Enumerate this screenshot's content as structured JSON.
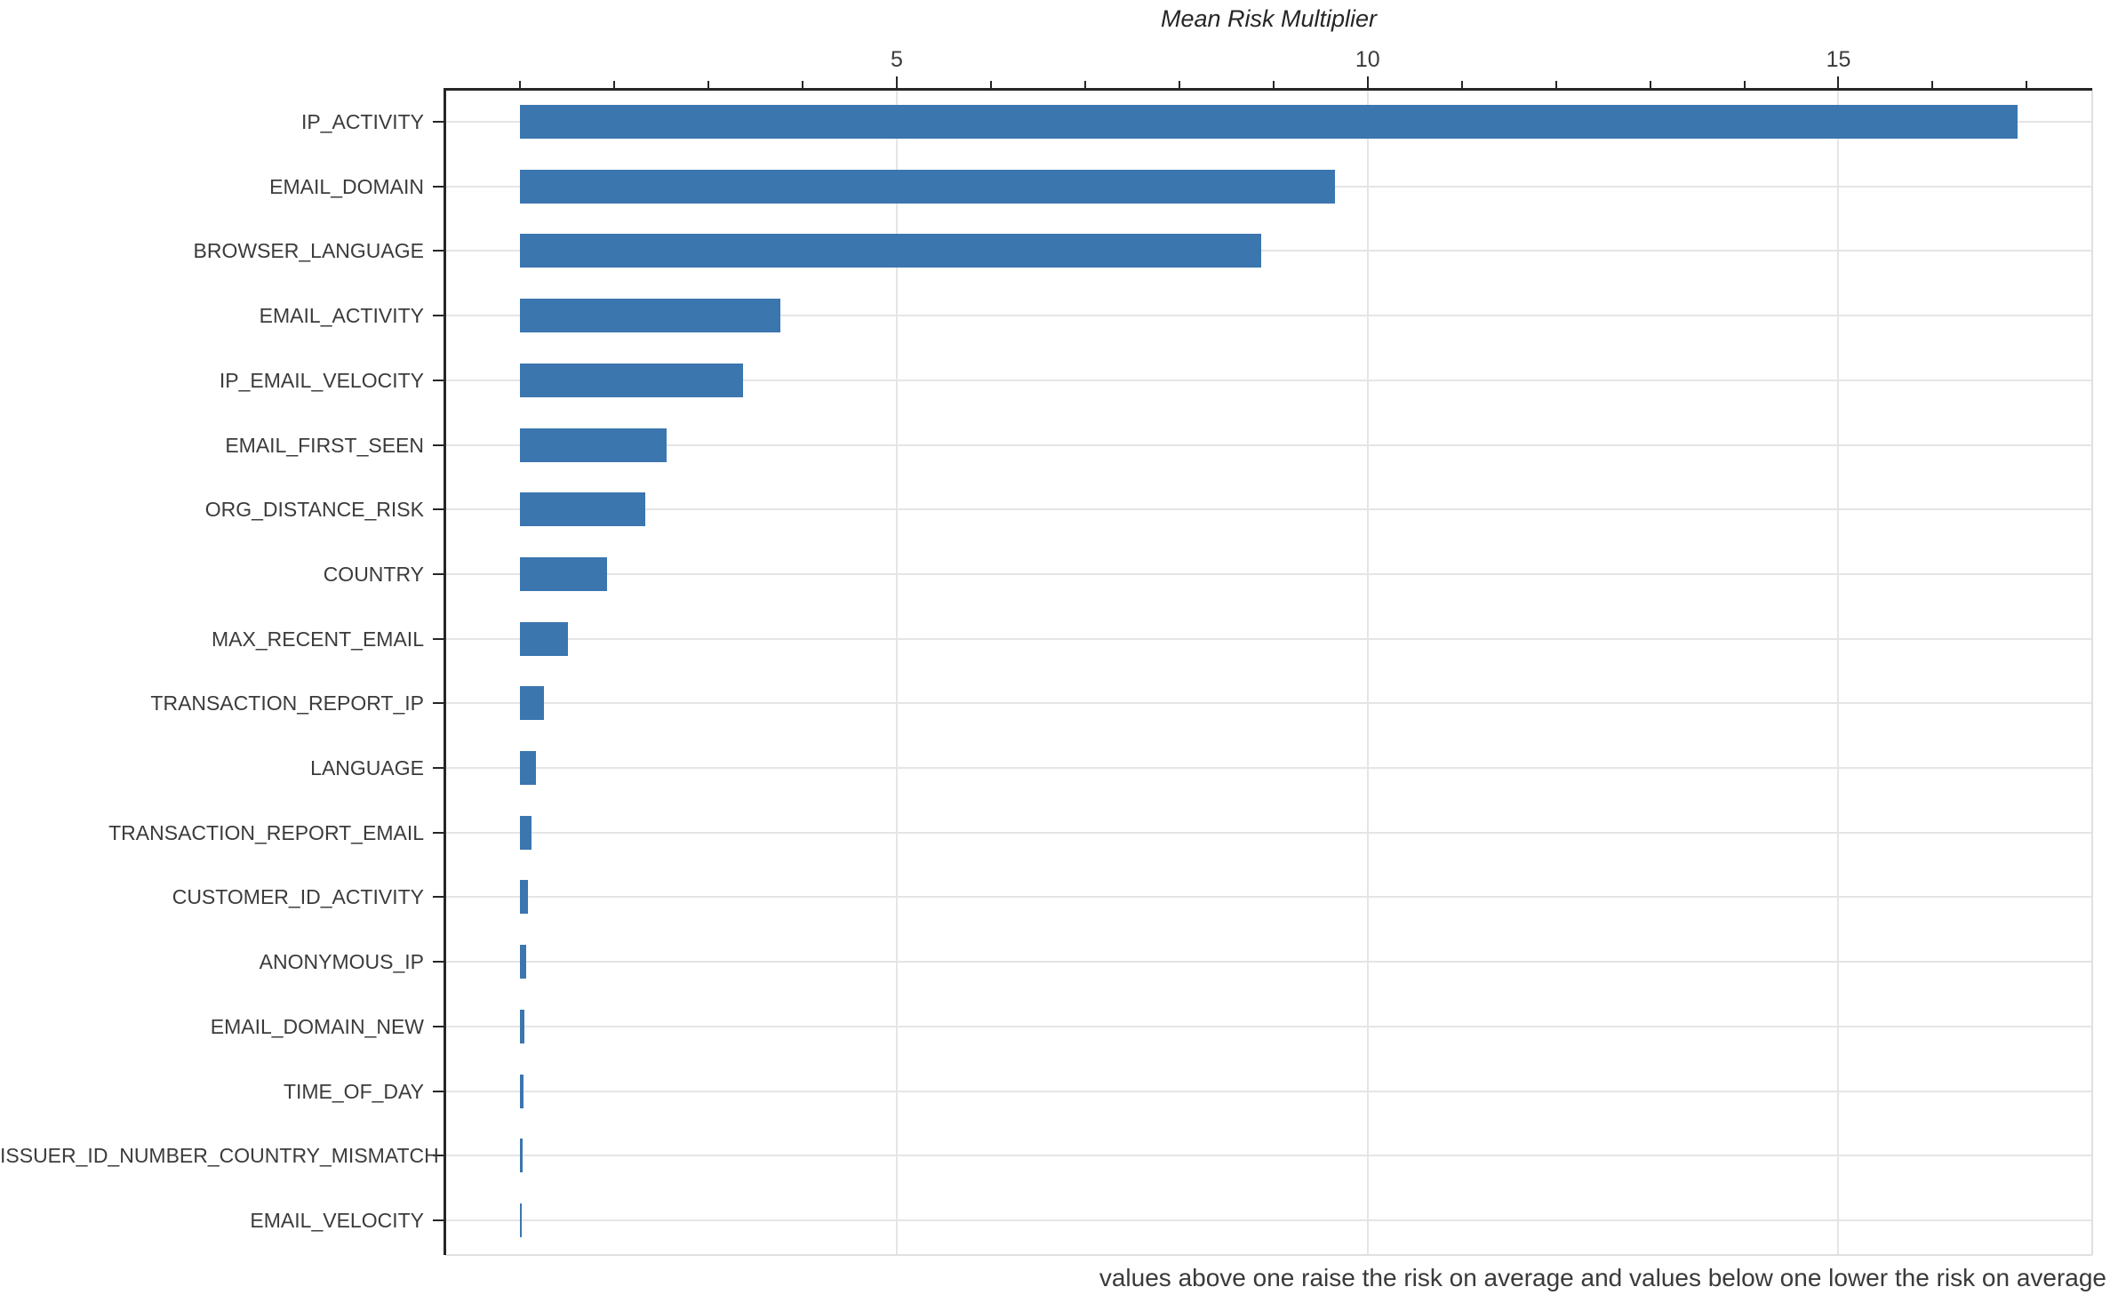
{
  "title": "Mean Risk Multiplier",
  "caption": "values above one raise the risk on average and values below one lower the risk on average",
  "chart_data": {
    "type": "bar",
    "orientation": "horizontal",
    "title": "Mean Risk Multiplier",
    "xlabel": "Mean Risk Multiplier",
    "ylabel": "",
    "categories": [
      "IP_ACTIVITY",
      "EMAIL_DOMAIN",
      "BROWSER_LANGUAGE",
      "EMAIL_ACTIVITY",
      "IP_EMAIL_VELOCITY",
      "EMAIL_FIRST_SEEN",
      "ORG_DISTANCE_RISK",
      "COUNTRY",
      "MAX_RECENT_EMAIL",
      "TRANSACTION_REPORT_IP",
      "LANGUAGE",
      "TRANSACTION_REPORT_EMAIL",
      "CUSTOMER_ID_ACTIVITY",
      "ANONYMOUS_IP",
      "EMAIL_DOMAIN_NEW",
      "TIME_OF_DAY",
      "ISSUER_ID_NUMBER_COUNTRY_MISMATCH",
      "EMAIL_VELOCITY"
    ],
    "values": [
      16.9,
      9.65,
      8.87,
      3.76,
      3.37,
      2.56,
      2.33,
      1.92,
      1.51,
      1.25,
      1.17,
      1.12,
      1.08,
      1.06,
      1.045,
      1.035,
      1.025,
      1.015
    ],
    "bar_base": 1,
    "xlim": [
      0.205,
      17.695
    ],
    "x_major_ticks": [
      5,
      10,
      15
    ],
    "x_minor_ticks": [
      1,
      2,
      3,
      4,
      6,
      7,
      8,
      9,
      11,
      12,
      13,
      14,
      16,
      17
    ],
    "grid": "horizontal line per category, vertical lines at major ticks",
    "legend_position": "none",
    "annotation": "values above one raise the risk on average and values below one lower the risk on average",
    "bar_color": "#3b76af"
  },
  "colors": {
    "bar": "#3b76af",
    "axis_dark": "#262626",
    "grid_light": "#e5e5e5",
    "text": "#3b3b3b",
    "background": "#ffffff"
  }
}
